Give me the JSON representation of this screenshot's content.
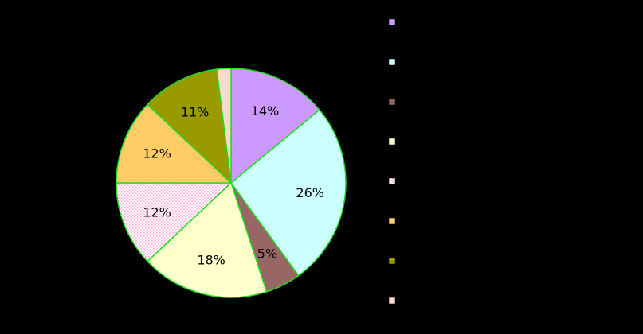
{
  "chart_data": {
    "type": "pie",
    "title": "",
    "background": "#000000",
    "edge_color": "#22DD22",
    "start_angle_deg": 0,
    "direction": "clockwise",
    "legend": {
      "placement": "right"
    },
    "slices": [
      {
        "name": "",
        "value": 14,
        "label": "14%",
        "color": "#CC99FF",
        "pattern": "none"
      },
      {
        "name": "",
        "value": 26,
        "label": "26%",
        "color": "#CCFFFF",
        "pattern": "none"
      },
      {
        "name": "",
        "value": 5,
        "label": "5%",
        "color": "#996666",
        "pattern": "none"
      },
      {
        "name": "",
        "value": 18,
        "label": "18%",
        "color": "#FFFFCC",
        "pattern": "none"
      },
      {
        "name": "",
        "value": 12,
        "label": "12%",
        "color": "#FFCCEE",
        "pattern": "dots"
      },
      {
        "name": "",
        "value": 12,
        "label": "12%",
        "color": "#FFCC66",
        "pattern": "none"
      },
      {
        "name": "",
        "value": 11,
        "label": "11%",
        "color": "#999900",
        "pattern": "none"
      },
      {
        "name": "",
        "value": 2,
        "label": "",
        "color": "#FFD9CC",
        "pattern": "none"
      }
    ]
  }
}
